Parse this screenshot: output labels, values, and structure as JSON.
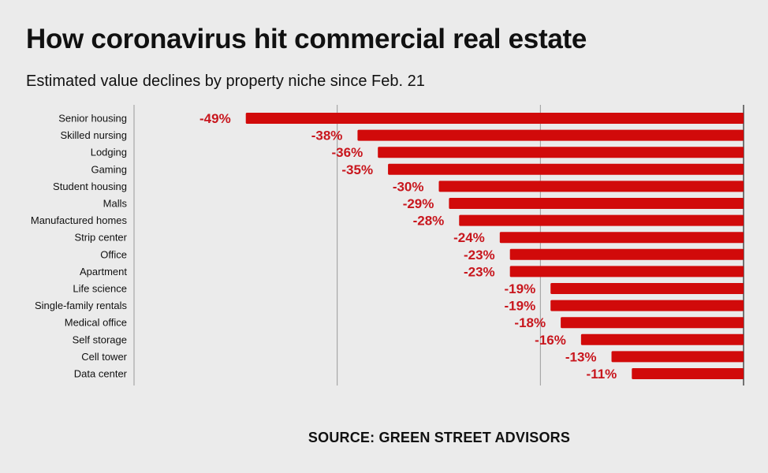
{
  "colors": {
    "bar": "#d10a0a",
    "value_label": "#c8161d",
    "grid": "#9a9a9a",
    "background": "#ebebeb"
  },
  "chart_data": {
    "type": "bar",
    "orientation": "horizontal",
    "title": "How coronavirus hit commercial real estate",
    "subtitle": "Estimated value declines by property niche since Feb. 21",
    "source": "SOURCE: GREEN STREET ADVISORS",
    "categories": [
      "Senior housing",
      "Skilled nursing",
      "Lodging",
      "Gaming",
      "Student housing",
      "Malls",
      "Manufactured homes",
      "Strip center",
      "Office",
      "Apartment",
      "Life science",
      "Single-family rentals",
      "Medical office",
      "Self storage",
      "Cell tower",
      "Data center"
    ],
    "values": [
      -49,
      -38,
      -36,
      -35,
      -30,
      -29,
      -28,
      -24,
      -23,
      -23,
      -19,
      -19,
      -18,
      -16,
      -13,
      -11
    ],
    "value_labels": [
      "-49%",
      "-38%",
      "-36%",
      "-35%",
      "-30%",
      "-29%",
      "-28%",
      "-24%",
      "-23%",
      "-23%",
      "-19%",
      "-19%",
      "-18%",
      "-16%",
      "-13%",
      "-11%"
    ],
    "xlim": [
      -60,
      0
    ],
    "xlabel": "",
    "ylabel": "",
    "grid": true,
    "legend": "none"
  }
}
